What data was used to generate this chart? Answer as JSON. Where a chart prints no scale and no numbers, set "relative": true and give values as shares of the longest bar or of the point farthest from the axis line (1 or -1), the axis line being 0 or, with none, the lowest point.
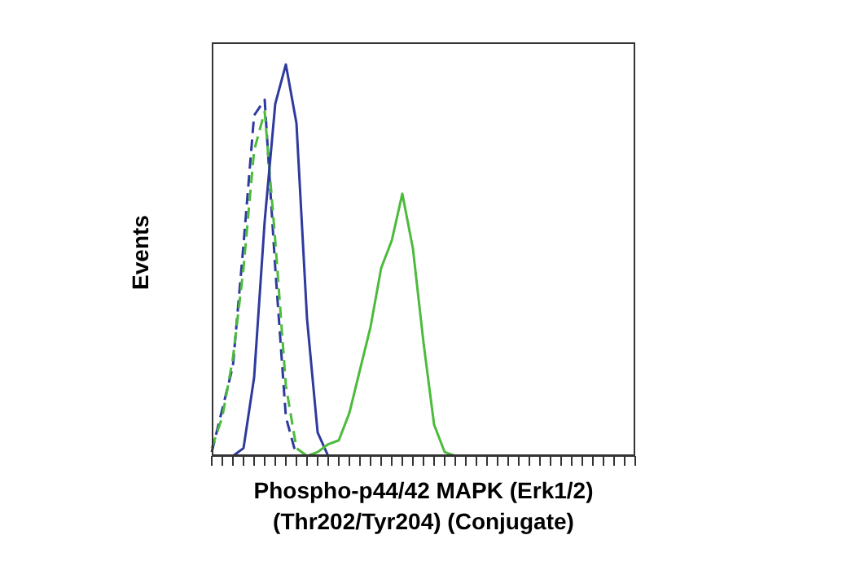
{
  "chart_data": {
    "type": "line",
    "xlabel": "Phospho-p44/42 MAPK (Erk1/2) (Thr202/Tyr204) (Conjugate)",
    "ylabel": "Events",
    "relative": true,
    "marker": "none",
    "categories": [
      null,
      null,
      null,
      null,
      null,
      null,
      null,
      null,
      null,
      null,
      null,
      null,
      null,
      null,
      null,
      null,
      null,
      null,
      null,
      null,
      null,
      null,
      null,
      null,
      null,
      null,
      null,
      null,
      null,
      null,
      null,
      null,
      null,
      null,
      null,
      null,
      null,
      null,
      null,
      null,
      null
    ],
    "series": [
      {
        "color": "#2e3a9e",
        "line_style": "dashed",
        "values": [
          0.01,
          0.12,
          0.23,
          0.54,
          0.87,
          0.91,
          0.48,
          0.1,
          0,
          null,
          null,
          null,
          null,
          null,
          null,
          null,
          null,
          null,
          null,
          null,
          null,
          null,
          null,
          null,
          null,
          null,
          null,
          null,
          null,
          null,
          null,
          null,
          null,
          null,
          null,
          null,
          null,
          null,
          null,
          null,
          null
        ]
      },
      {
        "color": "#4cbb3c",
        "line_style": "dashed",
        "values": [
          0.02,
          0.1,
          0.25,
          0.48,
          0.78,
          0.88,
          0.55,
          0.18,
          0.02,
          0,
          null,
          null,
          null,
          null,
          null,
          null,
          null,
          null,
          null,
          null,
          null,
          null,
          null,
          null,
          null,
          null,
          null,
          null,
          null,
          null,
          null,
          null,
          null,
          null,
          null,
          null,
          null,
          null,
          null,
          null,
          null
        ]
      },
      {
        "color": "#2e3a9e",
        "line_style": "solid",
        "values": [
          null,
          null,
          0,
          0.02,
          0.2,
          0.6,
          0.9,
          1,
          0.85,
          0.35,
          0.06,
          0,
          null,
          null,
          null,
          null,
          null,
          null,
          null,
          null,
          null,
          null,
          null,
          null,
          null,
          null,
          null,
          null,
          null,
          null,
          null,
          null,
          null,
          null,
          null,
          null,
          null,
          null,
          null,
          null,
          null
        ]
      },
      {
        "color": "#4cbb3c",
        "line_style": "solid",
        "values": [
          null,
          null,
          null,
          null,
          null,
          null,
          null,
          null,
          null,
          0,
          0.01,
          0.03,
          0.04,
          0.11,
          0.22,
          0.33,
          0.48,
          0.55,
          0.67,
          0.53,
          0.29,
          0.08,
          0.01,
          0,
          null,
          null,
          null,
          null,
          null,
          null,
          null,
          null,
          null,
          null,
          null,
          null,
          null,
          null,
          null,
          null,
          null
        ]
      }
    ]
  }
}
